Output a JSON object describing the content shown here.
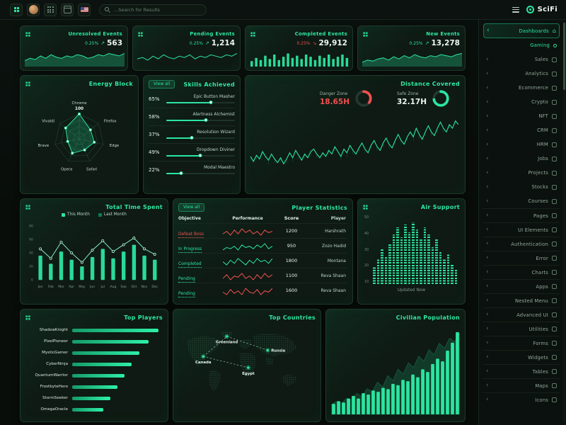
{
  "topbar": {
    "search_placeholder": "...Search for Results",
    "logo_text": "SciFi",
    "icons": [
      "apps-icon",
      "avatar",
      "dots-grid-icon",
      "calendar-icon",
      "us-flag-icon",
      "search-icon",
      "menu-icon",
      "logo-icon"
    ]
  },
  "colors": {
    "accent": "#2BE5A0",
    "danger": "#F05050"
  },
  "sidebar": {
    "items": [
      {
        "label": "Dashboards",
        "state": "active"
      },
      {
        "label": "Gaming",
        "state": "sub-active"
      },
      {
        "label": "Sales"
      },
      {
        "label": "Analytics"
      },
      {
        "label": "Ecommerce"
      },
      {
        "label": "Crypto"
      },
      {
        "label": "NFT"
      },
      {
        "label": "CRM"
      },
      {
        "label": "HRM"
      },
      {
        "label": "Jobs"
      },
      {
        "label": "Projects"
      },
      {
        "label": "Stocks"
      },
      {
        "label": "Courses"
      },
      {
        "label": "Pages"
      },
      {
        "label": "UI Elements"
      },
      {
        "label": "Authentication"
      },
      {
        "label": "Error"
      },
      {
        "label": "Charts"
      },
      {
        "label": "Apps"
      },
      {
        "label": "Nested Menu"
      },
      {
        "label": "Advanced UI"
      },
      {
        "label": "Utilities"
      },
      {
        "label": "Forms"
      },
      {
        "label": "Widgets"
      },
      {
        "label": "Tables"
      },
      {
        "label": "Maps"
      },
      {
        "label": "Icons"
      }
    ]
  },
  "stat_cards": [
    {
      "title": "Unresolved Events",
      "change": "0.25%",
      "trend": "up",
      "value": "563",
      "chart": {
        "type": "area",
        "values": [
          4,
          6,
          5,
          8,
          6,
          9,
          7,
          6,
          8,
          7,
          9,
          8,
          6,
          7,
          9,
          8,
          10,
          9,
          8,
          10
        ]
      }
    },
    {
      "title": "Pending Events",
      "change": "0.25%",
      "trend": "up",
      "value": "1,214",
      "chart": {
        "type": "line",
        "values": [
          5,
          6,
          4,
          7,
          5,
          8,
          6,
          5,
          7,
          6,
          8,
          5,
          7,
          6,
          8,
          7,
          6,
          8,
          7,
          9
        ]
      }
    },
    {
      "title": "Completed Events",
      "change": "0.25%",
      "trend": "down",
      "value": "29,912",
      "chart": {
        "type": "bars",
        "values": [
          4,
          7,
          5,
          9,
          6,
          10,
          5,
          8,
          11,
          7,
          9,
          6,
          10,
          8,
          5,
          9,
          7,
          10,
          6,
          8,
          10,
          7
        ]
      }
    },
    {
      "title": "New Events",
      "change": "0.25%",
      "trend": "up",
      "value": "13,278",
      "chart": {
        "type": "area",
        "values": [
          3,
          5,
          4,
          6,
          7,
          5,
          8,
          6,
          9,
          7,
          10,
          8,
          7,
          9,
          8,
          10,
          9,
          8,
          10,
          11
        ]
      }
    }
  ],
  "energy_block": {
    "title": "Energy Block",
    "max_label": "100",
    "max": 100,
    "axes": [
      "Chrome",
      "Firefox",
      "Edge",
      "Safari",
      "Opera",
      "Brave",
      "Vivaldi"
    ],
    "values": [
      100,
      58,
      62,
      50,
      64,
      48,
      70
    ]
  },
  "skills": {
    "title": "Skills Achieved",
    "view_all": "View all",
    "items": [
      {
        "pct": 65,
        "label": "Epic Button Masher"
      },
      {
        "pct": 58,
        "label": "Alertness Alchemist"
      },
      {
        "pct": 37,
        "label": "Resolution Wizard"
      },
      {
        "pct": 49,
        "label": "Dropdown Diviner"
      },
      {
        "pct": 22,
        "label": "Modal Maestro"
      }
    ]
  },
  "distance": {
    "title": "Distance Covered",
    "gauges": [
      {
        "label": "Danger Zone",
        "value": "18.65H",
        "fraction": 0.35,
        "color": "#F05050"
      },
      {
        "label": "Safe Zone",
        "value": "32.17H",
        "fraction": 0.72,
        "color": "#2BE5A0"
      }
    ],
    "chart": {
      "type": "line",
      "values": [
        38,
        34,
        39,
        36,
        42,
        38,
        35,
        40,
        36,
        33,
        37,
        32,
        36,
        41,
        37,
        43,
        39,
        35,
        40,
        37,
        42,
        44,
        40,
        37,
        41,
        38,
        43,
        40,
        46,
        42,
        38,
        44,
        41,
        47,
        43,
        40,
        45,
        49,
        44,
        41,
        47,
        51,
        46,
        43,
        49,
        53,
        48,
        45,
        51,
        56,
        51,
        48,
        54,
        58,
        54,
        61,
        56,
        52,
        58,
        63,
        58,
        55,
        61,
        66,
        61,
        58,
        64,
        61,
        67,
        64
      ]
    }
  },
  "time_spent": {
    "title": "Total Time Spent",
    "legend": [
      "This Month",
      "Last Month"
    ],
    "months": [
      "Jan",
      "Feb",
      "Mar",
      "Apr",
      "May",
      "Jun",
      "Jul",
      "Aug",
      "Sep",
      "Oct",
      "Nov",
      "Dec"
    ],
    "y_ticks": [
      0,
      20,
      40,
      60,
      80
    ],
    "series": [
      {
        "name": "This Month",
        "type": "bar",
        "values": [
          36,
          24,
          42,
          30,
          20,
          34,
          46,
          32,
          42,
          52,
          36,
          30
        ]
      },
      {
        "name": "Last Month",
        "type": "line",
        "values": [
          46,
          32,
          56,
          40,
          26,
          44,
          58,
          42,
          52,
          62,
          46,
          38
        ]
      }
    ]
  },
  "player_stats": {
    "title": "Player Statistics",
    "view_all": "View all",
    "columns": [
      "Objective",
      "Performance",
      "Score",
      "Player"
    ],
    "rows": [
      {
        "objective": "Defeat Boss",
        "status_color": "#F05050",
        "trend_color": "#F05050",
        "trend": [
          5,
          7,
          4,
          8,
          5,
          9,
          6,
          8,
          5,
          7,
          4,
          8,
          6,
          7
        ],
        "score": "1200",
        "player": "Harshrath"
      },
      {
        "objective": "In Progress",
        "status_color": "#2BE5A0",
        "trend_color": "#2BE5A0",
        "trend": [
          4,
          6,
          5,
          7,
          4,
          8,
          6,
          7,
          5,
          8,
          6,
          9,
          5,
          7
        ],
        "score": "950",
        "player": "Zozo Hadid"
      },
      {
        "objective": "Completed",
        "status_color": "#2BE5A0",
        "trend_color": "#2BE5A0",
        "trend": [
          6,
          4,
          7,
          5,
          8,
          6,
          4,
          7,
          5,
          8,
          6,
          7,
          5,
          8
        ],
        "score": "1800",
        "player": "Montana"
      },
      {
        "objective": "Pending",
        "status_color": "#2BE5A0",
        "trend_color": "#F05050",
        "trend": [
          5,
          8,
          4,
          7,
          6,
          9,
          5,
          7,
          4,
          8,
          5,
          9,
          6,
          8
        ],
        "score": "1100",
        "player": "Reva Shaan"
      },
      {
        "objective": "Pending",
        "status_color": "#2BE5A0",
        "trend_color": "#F05050",
        "trend": [
          6,
          4,
          8,
          5,
          7,
          4,
          9,
          6,
          5,
          8,
          4,
          7,
          6,
          9
        ],
        "score": "1600",
        "player": "Reva Shaan"
      }
    ]
  },
  "air_support": {
    "title": "Air Support",
    "updated": "Updated Now",
    "y_ticks": [
      50,
      40,
      30,
      20,
      10
    ],
    "values": [
      14,
      20,
      28,
      22,
      32,
      40,
      46,
      38,
      48,
      42,
      50,
      44,
      36,
      46,
      40,
      30,
      36,
      26,
      20,
      24,
      16,
      12
    ]
  },
  "top_players": {
    "title": "Top Players",
    "players": [
      {
        "name": "ShadowKnight",
        "value": 95
      },
      {
        "name": "PixelPioneer",
        "value": 84
      },
      {
        "name": "MysticGamer",
        "value": 74
      },
      {
        "name": "CyberNinja",
        "value": 66
      },
      {
        "name": "QuantumWarrior",
        "value": 58
      },
      {
        "name": "FrostbyteHero",
        "value": 50
      },
      {
        "name": "StormSeeker",
        "value": 42
      },
      {
        "name": "OmegaOracle",
        "value": 34
      }
    ]
  },
  "top_countries": {
    "title": "Top Countries",
    "countries": [
      "Greenland",
      "Canada",
      "Russia",
      "Egypt"
    ]
  },
  "population": {
    "title": "Civilian Population",
    "bars": [
      8,
      10,
      9,
      12,
      14,
      12,
      16,
      15,
      18,
      17,
      20,
      19,
      23,
      22,
      26,
      25,
      30,
      28,
      34,
      32,
      38,
      42,
      40,
      48,
      54,
      62
    ],
    "area": [
      12,
      16,
      14,
      20,
      18,
      26,
      22,
      32,
      28,
      40,
      34,
      48,
      42,
      56,
      50,
      64,
      58,
      72,
      66,
      80,
      74,
      88,
      82,
      94,
      90,
      100
    ]
  }
}
